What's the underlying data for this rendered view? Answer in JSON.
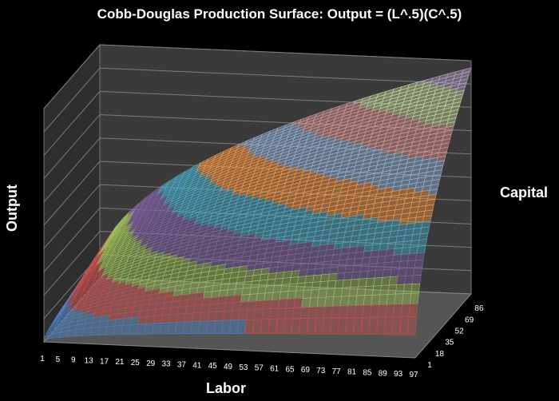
{
  "chart_data": {
    "type": "surface",
    "title": "Cobb-Douglas Production Surface: Output = (L^.5)(C^.5)",
    "xlabel": "Labor",
    "ylabel": "Output",
    "zlabel": "Capital",
    "formula": "Output = L^0.5 * C^0.5",
    "x_ticks": [
      "1",
      "5",
      "9",
      "13",
      "17",
      "21",
      "25",
      "29",
      "33",
      "37",
      "41",
      "45",
      "49",
      "53",
      "57",
      "61",
      "65",
      "69",
      "73",
      "77",
      "81",
      "85",
      "89",
      "93",
      "97"
    ],
    "depth_ticks": [
      "1",
      "18",
      "35",
      "52",
      "69",
      "86"
    ],
    "x_range": [
      1,
      97
    ],
    "depth_range": [
      1,
      97
    ],
    "output_range": [
      0,
      100
    ],
    "band_step": 10,
    "band_colors": [
      "#4f81bd",
      "#c0504d",
      "#9bbb59",
      "#8064a2",
      "#4bacc6",
      "#f79646",
      "#95b3d7",
      "#d99694",
      "#c3d69b",
      "#b3a2c7"
    ],
    "grid": true,
    "legend": "none"
  }
}
